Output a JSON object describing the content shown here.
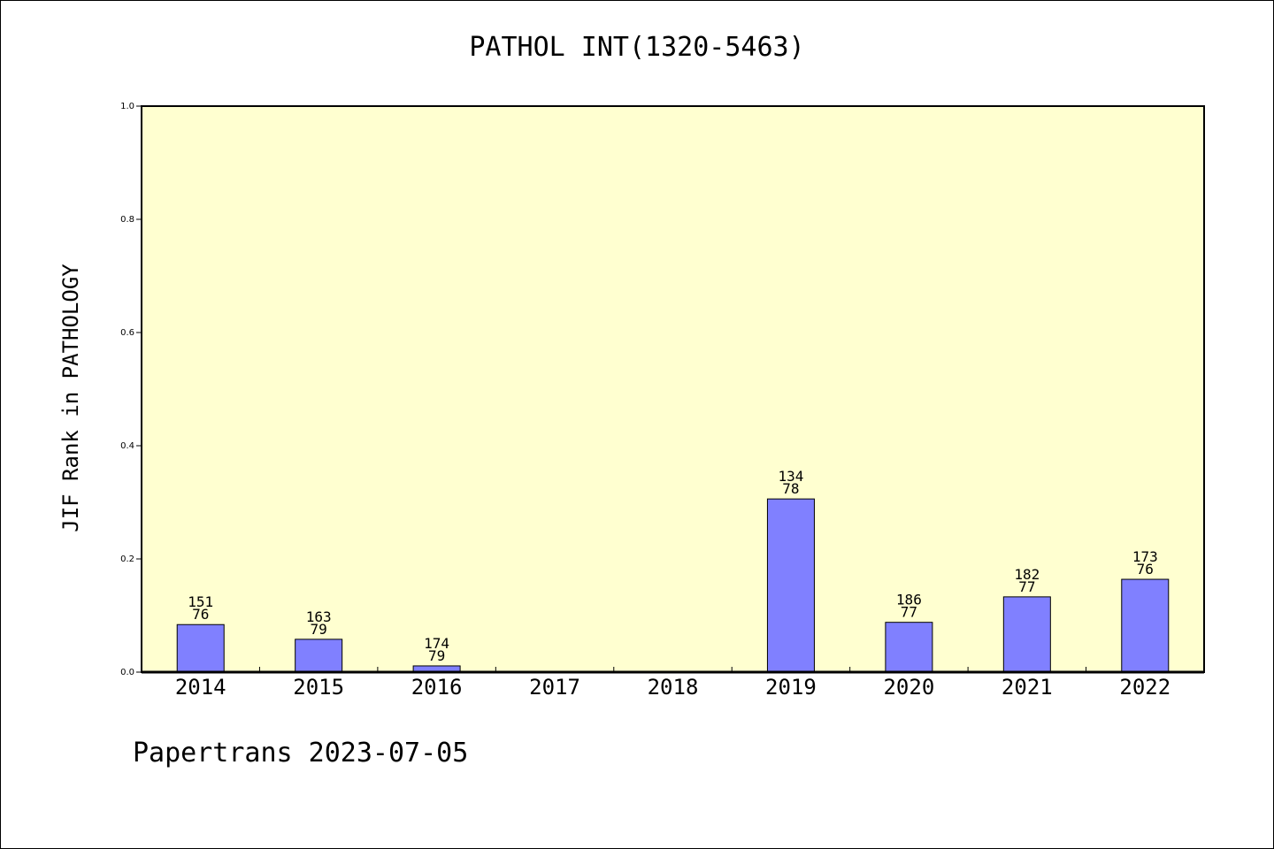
{
  "chart_data": {
    "type": "bar",
    "title": "PATHOL INT(1320-5463)",
    "xlabel": "",
    "ylabel": "JIF Rank in PATHOLOGY",
    "ylim": [
      0,
      1.0
    ],
    "yticks": [
      "0.0",
      "0.2",
      "0.4",
      "0.6",
      "0.8",
      "1.0"
    ],
    "categories": [
      "2014",
      "2015",
      "2016",
      "2017",
      "2018",
      "2019",
      "2020",
      "2021",
      "2022"
    ],
    "values": [
      0.084,
      0.058,
      0.011,
      null,
      null,
      0.306,
      0.088,
      0.133,
      0.164
    ],
    "label_top": [
      "151",
      "163",
      "174",
      null,
      null,
      "134",
      "186",
      "182",
      "173"
    ],
    "label_bottom": [
      "76",
      "79",
      "79",
      null,
      null,
      "78",
      "77",
      "77",
      "76"
    ],
    "grid": false,
    "colors": {
      "bar": "#8080ff",
      "plot_bg": "#ffffd0"
    }
  },
  "footer": "Papertrans 2023-07-05"
}
